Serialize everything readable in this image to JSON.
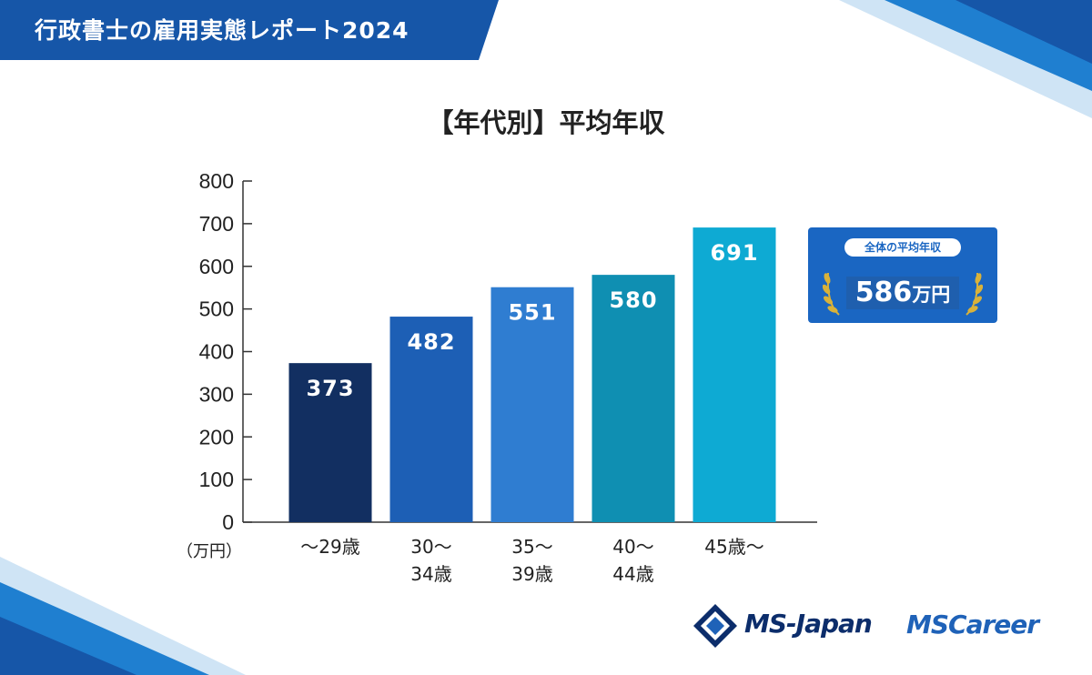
{
  "header": {
    "title": "行政書士の雇用実態レポート2024"
  },
  "chart_data": {
    "type": "bar",
    "title": "【年代別】平均年収",
    "categories": [
      [
        "～29歳"
      ],
      [
        "30～",
        "34歳"
      ],
      [
        "35～",
        "39歳"
      ],
      [
        "40～",
        "44歳"
      ],
      [
        "45歳～"
      ]
    ],
    "values": [
      373,
      482,
      551,
      580,
      691
    ],
    "value_labels": [
      "373",
      "482",
      "551",
      "580",
      "691"
    ],
    "yticks": [
      "0",
      "100",
      "200",
      "300",
      "400",
      "500",
      "600",
      "700",
      "800"
    ],
    "ylim": [
      0,
      800
    ],
    "ylabel": "（万円）",
    "colors": [
      "#122f61",
      "#1d5fb5",
      "#2f7dd1",
      "#0f8fb2",
      "#0eaad3"
    ]
  },
  "summary": {
    "label": "全体の平均年収",
    "value": "586",
    "unit": "万円"
  },
  "logos": {
    "ms_japan": "MS-Japan",
    "ms_career": "MSCareer"
  },
  "colors": {
    "brand_blue": "#1a66c2",
    "header_blue": "#1656a8",
    "laurel_gold": "#d9b23a"
  }
}
